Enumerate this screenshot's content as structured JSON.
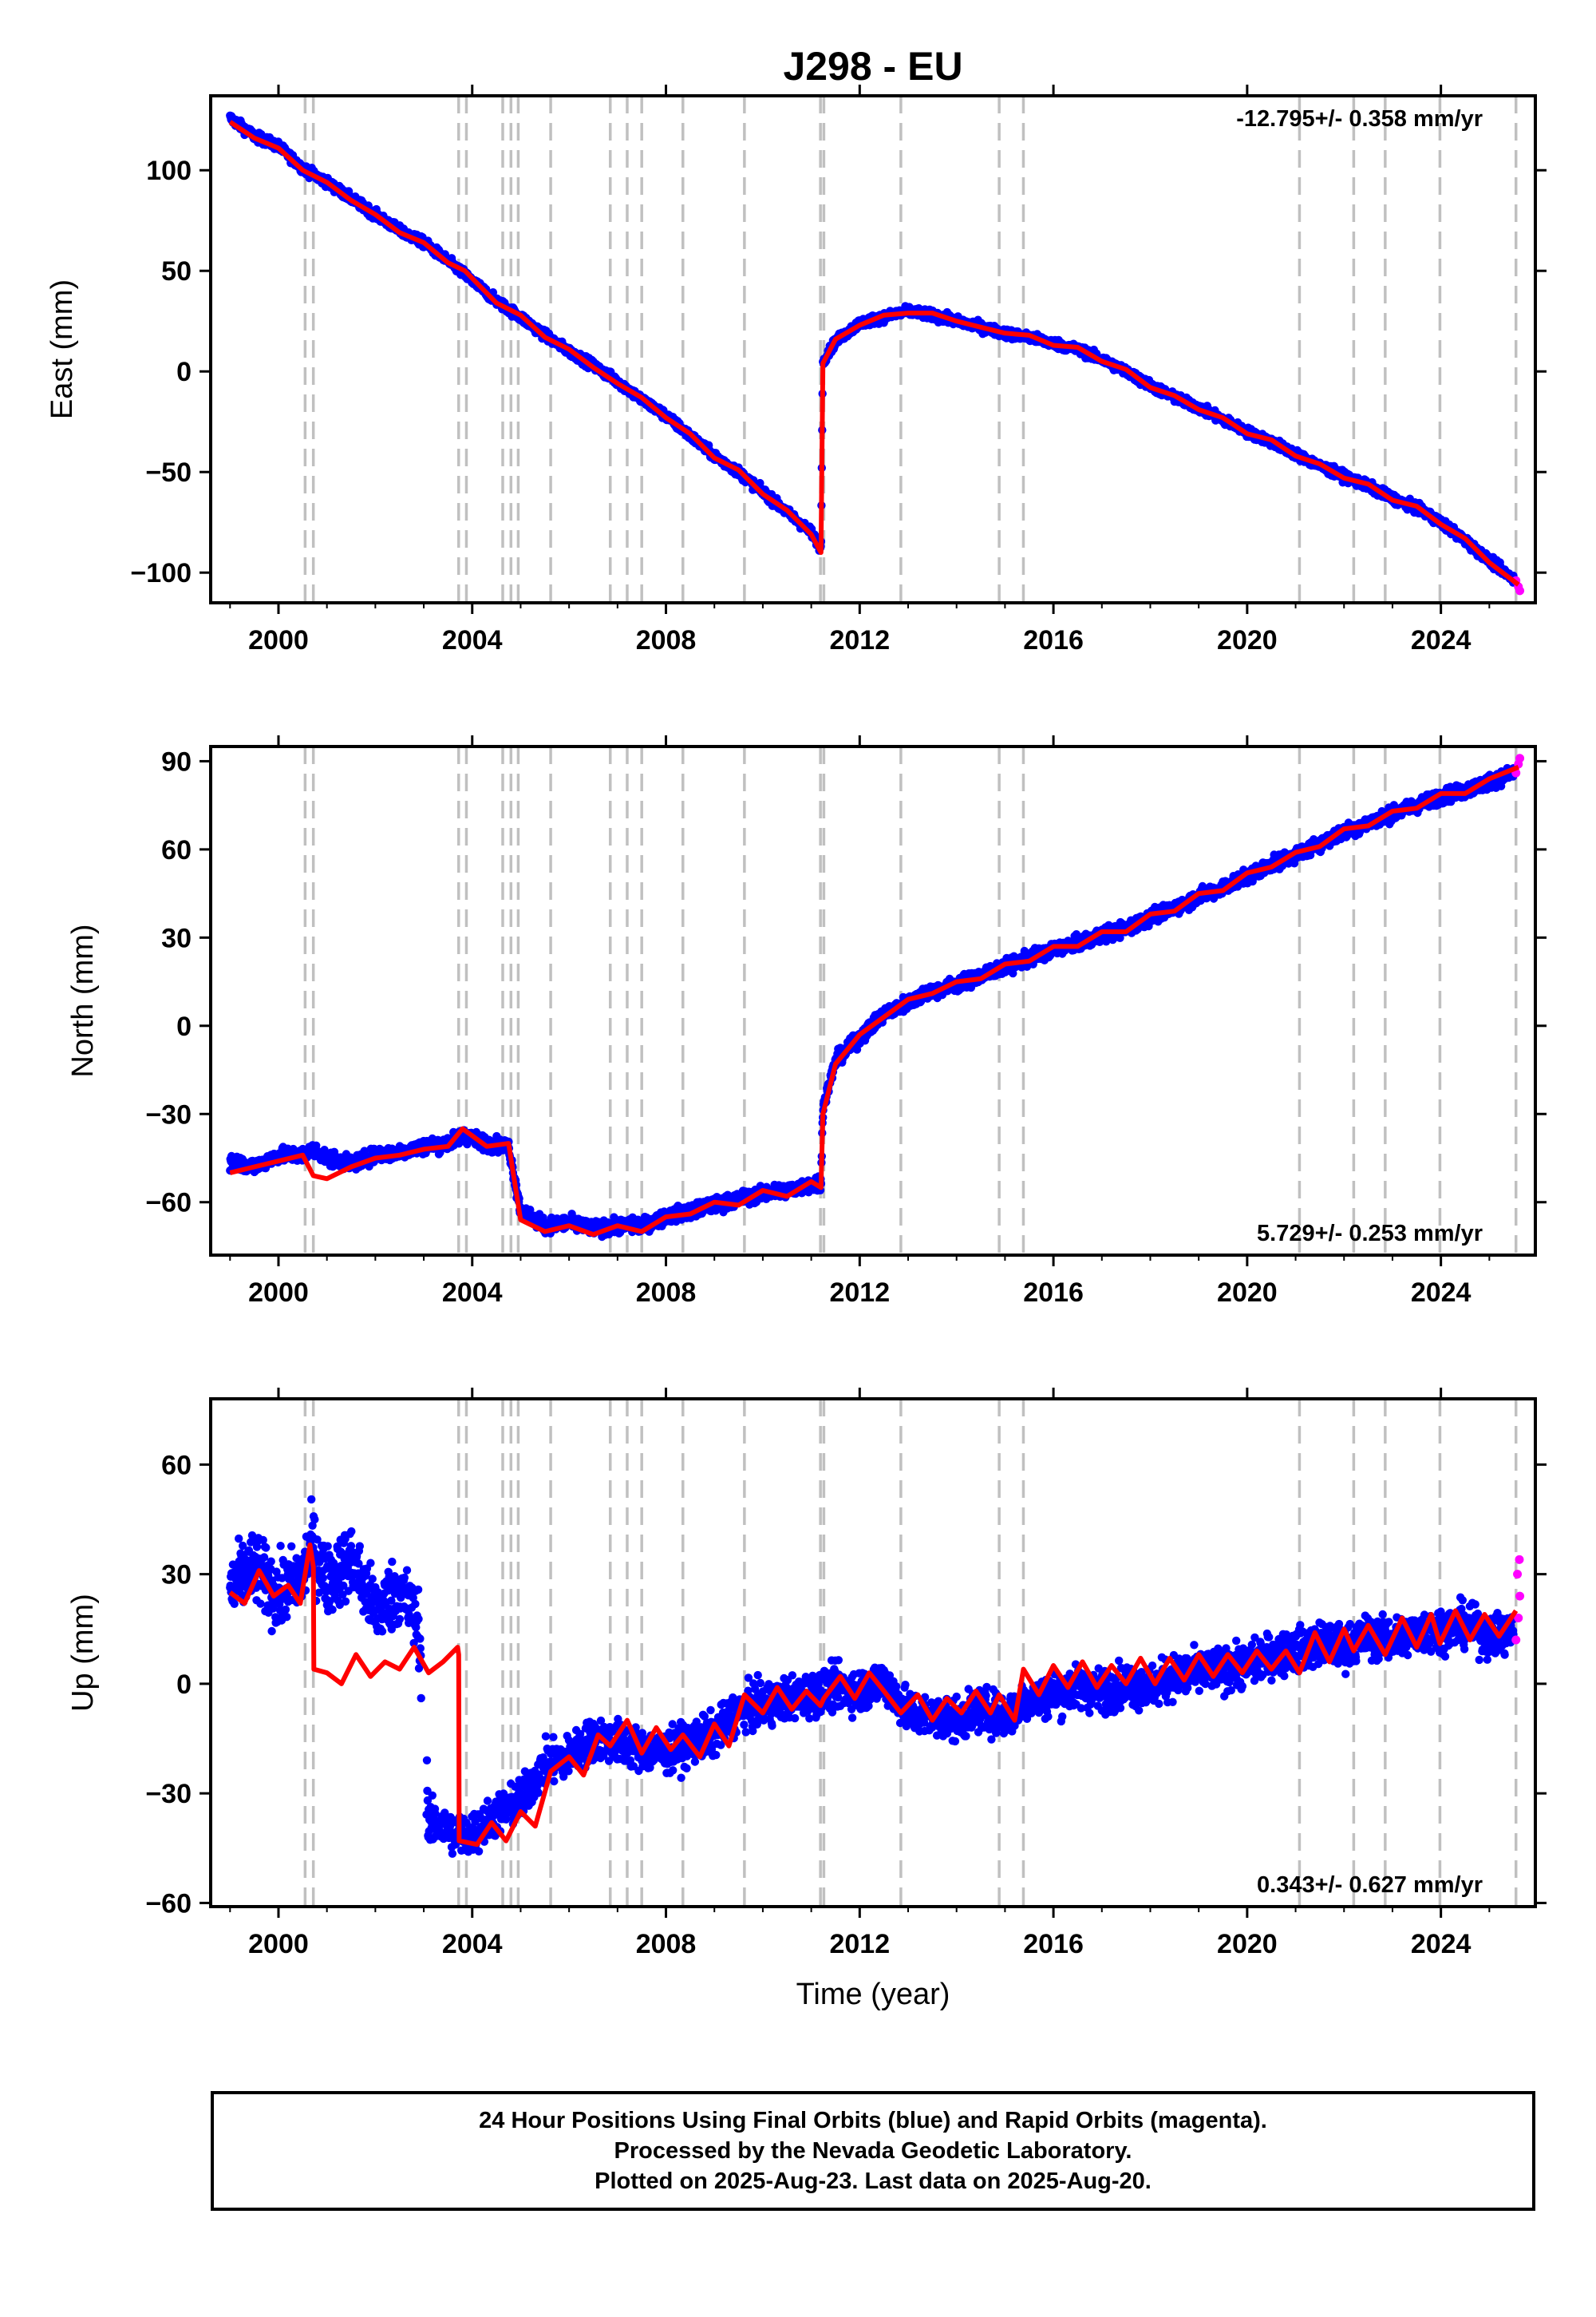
{
  "title": "J298 - EU",
  "xlabel": "Time (year)",
  "colors": {
    "final_orbits": "#0000ff",
    "rapid_orbits": "#ff00ff",
    "model": "#ff0000",
    "event_lines": "#c0c0c0"
  },
  "footer": {
    "line1": "24 Hour Positions Using Final Orbits (blue) and Rapid Orbits (magenta).",
    "line2": "Processed by the Nevada Geodetic Laboratory.",
    "line3": "Plotted on 2025-Aug-23. Last data on 2025-Aug-20."
  },
  "chart_data": [
    {
      "type": "scatter",
      "component": "east",
      "ylabel": "East (mm)",
      "rate_label": "-12.795+/- 0.358 mm/yr",
      "xlim": [
        1998.6,
        2025.95
      ],
      "ylim": [
        -115,
        137
      ],
      "xticks": [
        2000,
        2004,
        2008,
        2012,
        2016,
        2020,
        2024
      ],
      "yticks": [
        -100,
        -50,
        0,
        50,
        100
      ],
      "ytick_labels": [
        "−100",
        "−50",
        "0",
        "50",
        "100"
      ],
      "event_lines": [
        2000.55,
        2000.72,
        2003.72,
        2003.88,
        2004.63,
        2004.8,
        2004.95,
        2005.62,
        2006.85,
        2007.2,
        2007.5,
        2008.35,
        2009.62,
        2011.19,
        2011.26,
        2012.85,
        2014.88,
        2015.38,
        2021.08,
        2022.2,
        2022.85,
        2023.98,
        2025.55
      ],
      "series": [
        {
          "role": "final",
          "x": [
            1999.0,
            1999.5,
            2000.0,
            2000.5,
            2001.0,
            2001.5,
            2002.0,
            2002.5,
            2003.0,
            2003.5,
            2003.85,
            2004.5,
            2005.0,
            2005.5,
            2006.0,
            2006.5,
            2007.0,
            2007.5,
            2008.0,
            2008.5,
            2009.0,
            2009.5,
            2010.0,
            2010.5,
            2011.0,
            2011.2,
            2011.24,
            2011.5,
            2012.0,
            2012.5,
            2013.0,
            2013.5,
            2014.0,
            2014.5,
            2015.0,
            2015.5,
            2016.0,
            2016.5,
            2017.0,
            2017.5,
            2018.0,
            2018.5,
            2019.0,
            2019.5,
            2020.0,
            2020.5,
            2021.0,
            2021.5,
            2022.0,
            2022.5,
            2023.0,
            2023.5,
            2024.0,
            2024.5,
            2025.0,
            2025.5
          ],
          "y": [
            126,
            117,
            112,
            101,
            94,
            86,
            78,
            70,
            64,
            55,
            48,
            35,
            27,
            18,
            10,
            3,
            -5,
            -14,
            -22,
            -32,
            -42,
            -50,
            -60,
            -70,
            -80,
            -88,
            5,
            15,
            24,
            27,
            30,
            28,
            25,
            22,
            19,
            17,
            14,
            11,
            6,
            0,
            -7,
            -13,
            -18,
            -24,
            -30,
            -35,
            -41,
            -47,
            -52,
            -57,
            -63,
            -68,
            -75,
            -84,
            -94,
            -103
          ]
        },
        {
          "role": "rapid",
          "x": [
            2025.55,
            2025.6,
            2025.63
          ],
          "y": [
            -104,
            -107,
            -109
          ]
        },
        {
          "role": "model",
          "x": [
            1999.0,
            1999.5,
            2000.0,
            2000.5,
            2001.0,
            2001.5,
            2002.0,
            2002.5,
            2003.0,
            2003.5,
            2003.85,
            2004.5,
            2005.0,
            2005.5,
            2006.0,
            2006.5,
            2007.0,
            2007.5,
            2008.0,
            2008.5,
            2009.0,
            2009.5,
            2010.0,
            2010.5,
            2011.0,
            2011.2,
            2011.24,
            2011.5,
            2012.0,
            2012.5,
            2013.0,
            2013.5,
            2014.0,
            2014.5,
            2015.0,
            2015.5,
            2016.0,
            2016.5,
            2017.0,
            2017.5,
            2018.0,
            2018.5,
            2019.0,
            2019.5,
            2020.0,
            2020.5,
            2021.0,
            2021.5,
            2022.0,
            2022.5,
            2023.0,
            2023.5,
            2024.0,
            2024.5,
            2025.0,
            2025.6
          ],
          "y": [
            124,
            116,
            111,
            100,
            94,
            85,
            78,
            69,
            64,
            54,
            50,
            34,
            28,
            17,
            11,
            2,
            -6,
            -13,
            -23,
            -31,
            -43,
            -49,
            -61,
            -69,
            -81,
            -90,
            4,
            16,
            23,
            28,
            29,
            29,
            25,
            22,
            19,
            18,
            13,
            12,
            5,
            1,
            -8,
            -12,
            -19,
            -23,
            -31,
            -34,
            -42,
            -46,
            -53,
            -56,
            -64,
            -67,
            -76,
            -83,
            -95,
            -106
          ]
        }
      ]
    },
    {
      "type": "scatter",
      "component": "north",
      "ylabel": "North (mm)",
      "rate_label": "5.729+/- 0.253 mm/yr",
      "xlim": [
        1998.6,
        2025.95
      ],
      "ylim": [
        -78,
        95
      ],
      "xticks": [
        2000,
        2004,
        2008,
        2012,
        2016,
        2020,
        2024
      ],
      "yticks": [
        -60,
        -30,
        0,
        30,
        60,
        90
      ],
      "ytick_labels": [
        "−60",
        "−30",
        "0",
        "30",
        "60",
        "90"
      ],
      "event_lines": [
        2000.55,
        2000.72,
        2003.72,
        2003.88,
        2004.63,
        2004.8,
        2004.95,
        2005.62,
        2006.85,
        2007.2,
        2007.5,
        2008.35,
        2009.62,
        2011.19,
        2011.26,
        2012.85,
        2014.88,
        2015.38,
        2021.08,
        2022.2,
        2022.85,
        2023.98,
        2025.55
      ],
      "series": [
        {
          "role": "final",
          "x": [
            1999.0,
            1999.5,
            2000.0,
            2000.5,
            2000.72,
            2001.0,
            2001.5,
            2002.0,
            2002.5,
            2003.0,
            2003.5,
            2003.8,
            2004.3,
            2004.75,
            2005.0,
            2005.5,
            2006.0,
            2006.5,
            2007.0,
            2007.5,
            2008.0,
            2008.5,
            2009.0,
            2009.5,
            2010.0,
            2010.5,
            2011.0,
            2011.2,
            2011.24,
            2011.5,
            2012.0,
            2012.5,
            2013.0,
            2013.5,
            2014.0,
            2014.5,
            2015.0,
            2015.5,
            2016.0,
            2016.5,
            2017.0,
            2017.5,
            2018.0,
            2018.5,
            2019.0,
            2019.5,
            2020.0,
            2020.5,
            2021.0,
            2021.5,
            2022.0,
            2022.5,
            2023.0,
            2023.5,
            2024.0,
            2024.5,
            2025.0,
            2025.5
          ],
          "y": [
            -46,
            -48,
            -44,
            -44,
            -42,
            -45,
            -47,
            -44,
            -43,
            -41,
            -40,
            -37,
            -40,
            -41,
            -63,
            -68,
            -67,
            -69,
            -68,
            -68,
            -65,
            -63,
            -61,
            -59,
            -57,
            -56,
            -54,
            -53,
            -28,
            -12,
            -4,
            4,
            8,
            12,
            14,
            17,
            20,
            23,
            26,
            28,
            31,
            33,
            37,
            40,
            44,
            47,
            51,
            55,
            58,
            62,
            66,
            69,
            72,
            75,
            78,
            80,
            83,
            86
          ]
        },
        {
          "role": "rapid",
          "x": [
            2025.55,
            2025.6,
            2025.63
          ],
          "y": [
            86,
            89,
            91
          ]
        },
        {
          "role": "model",
          "x": [
            1999.0,
            1999.5,
            2000.0,
            2000.5,
            2000.72,
            2001.0,
            2001.5,
            2002.0,
            2002.5,
            2003.0,
            2003.5,
            2003.8,
            2004.3,
            2004.75,
            2005.0,
            2005.5,
            2006.0,
            2006.5,
            2007.0,
            2007.5,
            2008.0,
            2008.5,
            2009.0,
            2009.5,
            2010.0,
            2010.5,
            2011.0,
            2011.2,
            2011.24,
            2011.5,
            2012.0,
            2012.5,
            2013.0,
            2013.5,
            2014.0,
            2014.5,
            2015.0,
            2015.5,
            2016.0,
            2016.5,
            2017.0,
            2017.5,
            2018.0,
            2018.5,
            2019.0,
            2019.5,
            2020.0,
            2020.5,
            2021.0,
            2021.5,
            2022.0,
            2022.5,
            2023.0,
            2023.5,
            2024.0,
            2024.5,
            2025.0,
            2025.6
          ],
          "y": [
            -50,
            -48,
            -46,
            -44,
            -51,
            -52,
            -48,
            -45,
            -44,
            -42,
            -41,
            -35,
            -41,
            -40,
            -66,
            -70,
            -68,
            -71,
            -68,
            -70,
            -65,
            -64,
            -60,
            -61,
            -56,
            -58,
            -53,
            -55,
            -30,
            -13,
            -3,
            3,
            9,
            11,
            15,
            16,
            21,
            22,
            27,
            27,
            32,
            32,
            38,
            39,
            45,
            46,
            52,
            54,
            59,
            61,
            67,
            68,
            73,
            74,
            79,
            79,
            84,
            88
          ]
        }
      ]
    },
    {
      "type": "scatter",
      "component": "up",
      "ylabel": "Up (mm)",
      "rate_label": "0.343+/- 0.627 mm/yr",
      "xlabel": "Time (year)",
      "xlim": [
        1998.6,
        2025.95
      ],
      "ylim": [
        -61,
        78
      ],
      "xticks": [
        2000,
        2004,
        2008,
        2012,
        2016,
        2020,
        2024
      ],
      "yticks": [
        -60,
        -30,
        0,
        30,
        60
      ],
      "ytick_labels": [
        "−60",
        "−30",
        "0",
        "30",
        "60"
      ],
      "event_lines": [
        2000.55,
        2000.72,
        2003.72,
        2003.88,
        2004.63,
        2004.8,
        2004.95,
        2005.62,
        2006.85,
        2007.2,
        2007.5,
        2008.35,
        2009.62,
        2011.19,
        2011.26,
        2012.85,
        2014.88,
        2015.38,
        2021.08,
        2022.2,
        2022.85,
        2023.98,
        2025.55
      ],
      "series": [
        {
          "role": "final",
          "x": [
            1999.0,
            1999.5,
            2000.0,
            2000.5,
            2000.7,
            2001.0,
            2001.5,
            2002.0,
            2002.5,
            2002.9,
            2003.1,
            2003.5,
            2003.9,
            2004.5,
            2005.0,
            2005.5,
            2006.0,
            2006.5,
            2007.0,
            2007.5,
            2008.0,
            2008.5,
            2009.0,
            2009.5,
            2010.0,
            2010.5,
            2011.0,
            2011.5,
            2012.0,
            2012.5,
            2013.0,
            2013.5,
            2014.0,
            2014.5,
            2015.0,
            2015.5,
            2016.0,
            2016.5,
            2017.0,
            2017.5,
            2018.0,
            2018.5,
            2019.0,
            2019.5,
            2020.0,
            2020.5,
            2021.0,
            2021.5,
            2022.0,
            2022.5,
            2023.0,
            2023.5,
            2024.0,
            2024.5,
            2025.0,
            2025.5
          ],
          "y": [
            26,
            32,
            24,
            30,
            38,
            28,
            34,
            20,
            26,
            16,
            -38,
            -40,
            -42,
            -36,
            -32,
            -22,
            -20,
            -15,
            -16,
            -18,
            -19,
            -16,
            -14,
            -7,
            -6,
            -4,
            -3,
            -1,
            -2,
            1,
            -8,
            -9,
            -10,
            -7,
            -9,
            -4,
            -3,
            -1,
            -2,
            0,
            -1,
            2,
            3,
            4,
            5,
            8,
            9,
            11,
            10,
            13,
            12,
            14,
            15,
            16,
            13,
            14
          ]
        },
        {
          "role": "rapid",
          "x": [
            2025.55,
            2025.6,
            2025.63,
            2025.58,
            2025.62
          ],
          "y": [
            12,
            18,
            24,
            30,
            34
          ]
        },
        {
          "role": "model",
          "x": [
            1999.0,
            1999.3,
            1999.6,
            1999.9,
            2000.2,
            2000.45,
            2000.65,
            2000.72,
            2000.73,
            2001.0,
            2001.3,
            2001.6,
            2001.9,
            2002.2,
            2002.5,
            2002.8,
            2003.1,
            2003.4,
            2003.7,
            2003.72,
            2003.73,
            2004.1,
            2004.4,
            2004.7,
            2005.0,
            2005.3,
            2005.62,
            2006.0,
            2006.3,
            2006.6,
            2006.85,
            2007.2,
            2007.5,
            2007.8,
            2008.1,
            2008.35,
            2008.7,
            2009.0,
            2009.3,
            2009.62,
            2010.0,
            2010.3,
            2010.6,
            2010.9,
            2011.19,
            2011.26,
            2011.6,
            2011.9,
            2012.2,
            2012.5,
            2012.85,
            2013.2,
            2013.5,
            2013.8,
            2014.1,
            2014.4,
            2014.7,
            2014.88,
            2015.2,
            2015.38,
            2015.7,
            2016.0,
            2016.3,
            2016.6,
            2016.9,
            2017.2,
            2017.5,
            2017.8,
            2018.1,
            2018.4,
            2018.7,
            2019.0,
            2019.3,
            2019.6,
            2019.9,
            2020.2,
            2020.5,
            2020.8,
            2021.08,
            2021.4,
            2021.7,
            2022.0,
            2022.2,
            2022.5,
            2022.85,
            2023.2,
            2023.5,
            2023.8,
            2023.98,
            2024.3,
            2024.6,
            2024.9,
            2025.2,
            2025.55
          ],
          "y": [
            25,
            22,
            31,
            24,
            27,
            22,
            38,
            32,
            4,
            3,
            0,
            8,
            2,
            6,
            4,
            10,
            3,
            6,
            10,
            8,
            -43,
            -44,
            -38,
            -43,
            -35,
            -39,
            -24,
            -20,
            -25,
            -14,
            -17,
            -10,
            -19,
            -12,
            -18,
            -14,
            -20,
            -11,
            -17,
            -3,
            -8,
            -1,
            -7,
            -2,
            -6,
            -4,
            2,
            -4,
            3,
            -2,
            -8,
            -3,
            -10,
            -4,
            -8,
            -2,
            -8,
            -3,
            -10,
            4,
            -3,
            5,
            -1,
            6,
            -1,
            5,
            0,
            7,
            0,
            7,
            1,
            8,
            2,
            8,
            3,
            9,
            4,
            9,
            3,
            14,
            6,
            15,
            9,
            16,
            8,
            18,
            10,
            19,
            11,
            20,
            12,
            19,
            13,
            20
          ]
        }
      ]
    }
  ]
}
